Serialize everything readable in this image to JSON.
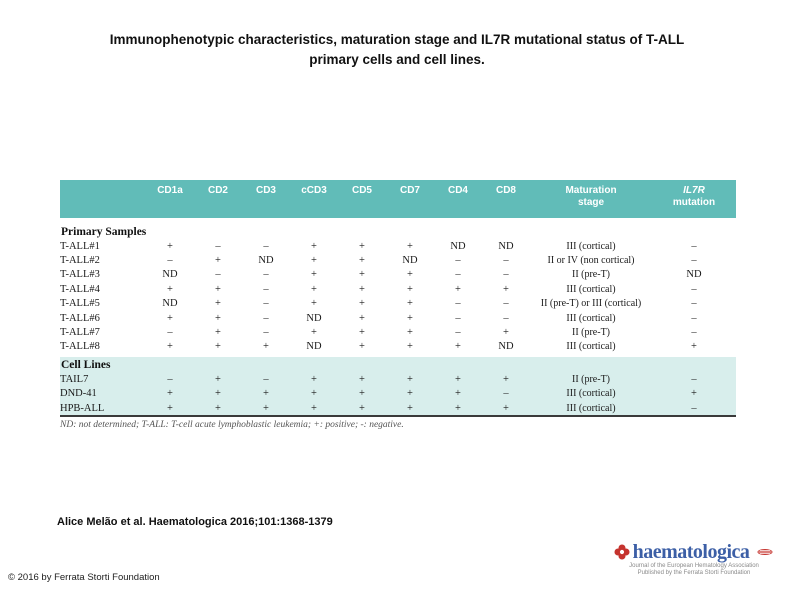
{
  "title": {
    "line1": "Immunophenotypic characteristics, maturation stage and IL7R mutational status of T-ALL",
    "line2": "primary cells and cell lines."
  },
  "table": {
    "header": {
      "markers": [
        "CD1a",
        "CD2",
        "CD3",
        "cCD3",
        "CD5",
        "CD7",
        "CD4",
        "CD8"
      ],
      "maturation_line1": "Maturation",
      "maturation_line2": "stage",
      "il7r_line1": "IL7R",
      "il7r_line2": "mutation"
    },
    "sections": [
      {
        "label": "Primary Samples",
        "tinted": false,
        "rows": [
          {
            "name": "T-ALL#1",
            "markers": [
              "+",
              "–",
              "–",
              "+",
              "+",
              "+",
              "ND",
              "ND"
            ],
            "maturation": "III (cortical)",
            "il7r": "–"
          },
          {
            "name": "T-ALL#2",
            "markers": [
              "–",
              "+",
              "ND",
              "+",
              "+",
              "ND",
              "–",
              "–"
            ],
            "maturation": "II or IV (non cortical)",
            "il7r": "–"
          },
          {
            "name": "T-ALL#3",
            "markers": [
              "ND",
              "–",
              "–",
              "+",
              "+",
              "+",
              "–",
              "–"
            ],
            "maturation": "II (pre-T)",
            "il7r": "ND"
          },
          {
            "name": "T-ALL#4",
            "markers": [
              "+",
              "+",
              "–",
              "+",
              "+",
              "+",
              "+",
              "+"
            ],
            "maturation": "III (cortical)",
            "il7r": "–"
          },
          {
            "name": "T-ALL#5",
            "markers": [
              "ND",
              "+",
              "–",
              "+",
              "+",
              "+",
              "–",
              "–"
            ],
            "maturation": "II (pre-T) or III (cortical)",
            "il7r": "–"
          },
          {
            "name": "T-ALL#6",
            "markers": [
              "+",
              "+",
              "–",
              "ND",
              "+",
              "+",
              "–",
              "–"
            ],
            "maturation": "III (cortical)",
            "il7r": "–"
          },
          {
            "name": "T-ALL#7",
            "markers": [
              "–",
              "+",
              "–",
              "+",
              "+",
              "+",
              "–",
              "+"
            ],
            "maturation": "II (pre-T)",
            "il7r": "–"
          },
          {
            "name": "T-ALL#8",
            "markers": [
              "+",
              "+",
              "+",
              "ND",
              "+",
              "+",
              "+",
              "ND"
            ],
            "maturation": "III (cortical)",
            "il7r": "+"
          }
        ]
      },
      {
        "label": "Cell Lines",
        "tinted": true,
        "rows": [
          {
            "name": "TAIL7",
            "markers": [
              "–",
              "+",
              "–",
              "+",
              "+",
              "+",
              "+",
              "+"
            ],
            "maturation": "II (pre-T)",
            "il7r": "–"
          },
          {
            "name": "DND-41",
            "markers": [
              "+",
              "+",
              "+",
              "+",
              "+",
              "+",
              "+",
              "–"
            ],
            "maturation": "III (cortical)",
            "il7r": "+"
          },
          {
            "name": "HPB-ALL",
            "markers": [
              "+",
              "+",
              "+",
              "+",
              "+",
              "+",
              "+",
              "+"
            ],
            "maturation": "III (cortical)",
            "il7r": "–"
          }
        ]
      }
    ],
    "footnote": "ND: not determined; T-ALL: T-cell acute lymphoblastic leukemia; +: positive; -: negative."
  },
  "citation": "Alice Melão et al. Haematologica 2016;101:1368-1379",
  "copyright": "© 2016 by Ferrata Storti Foundation",
  "logo": {
    "wordmark": "haematologica",
    "tagline_line1": "Journal of the European Hematology Association",
    "tagline_line2": "Published by the Ferrata Storti Foundation"
  },
  "colors": {
    "header_teal": "#61bcb8",
    "section_tint": "#d8eeec",
    "logo_blue": "#3c5fa6",
    "logo_red": "#c5332e"
  }
}
